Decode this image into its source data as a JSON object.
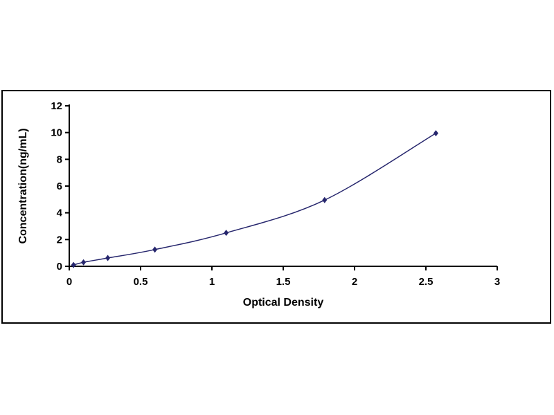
{
  "frame": {
    "background_color": "#ffffff",
    "border_color": "#000000"
  },
  "chart_data": {
    "type": "line",
    "title": "",
    "xlabel": "Optical Density",
    "ylabel": "Concentration(ng/mL)",
    "xlim": [
      0,
      3
    ],
    "ylim": [
      0,
      12
    ],
    "xticks": [
      0,
      0.5,
      1,
      1.5,
      2,
      2.5,
      3
    ],
    "yticks": [
      0,
      2,
      4,
      6,
      8,
      10,
      12
    ],
    "grid": false,
    "legend": false,
    "series": [
      {
        "name": "standard-curve",
        "marker": "diamond",
        "line_color": "#26266d",
        "marker_color": "#26266d",
        "x": [
          0.03,
          0.1,
          0.27,
          0.6,
          1.1,
          1.79,
          2.57
        ],
        "y": [
          0.1,
          0.3,
          0.62,
          1.25,
          2.5,
          4.95,
          9.95
        ]
      }
    ]
  }
}
